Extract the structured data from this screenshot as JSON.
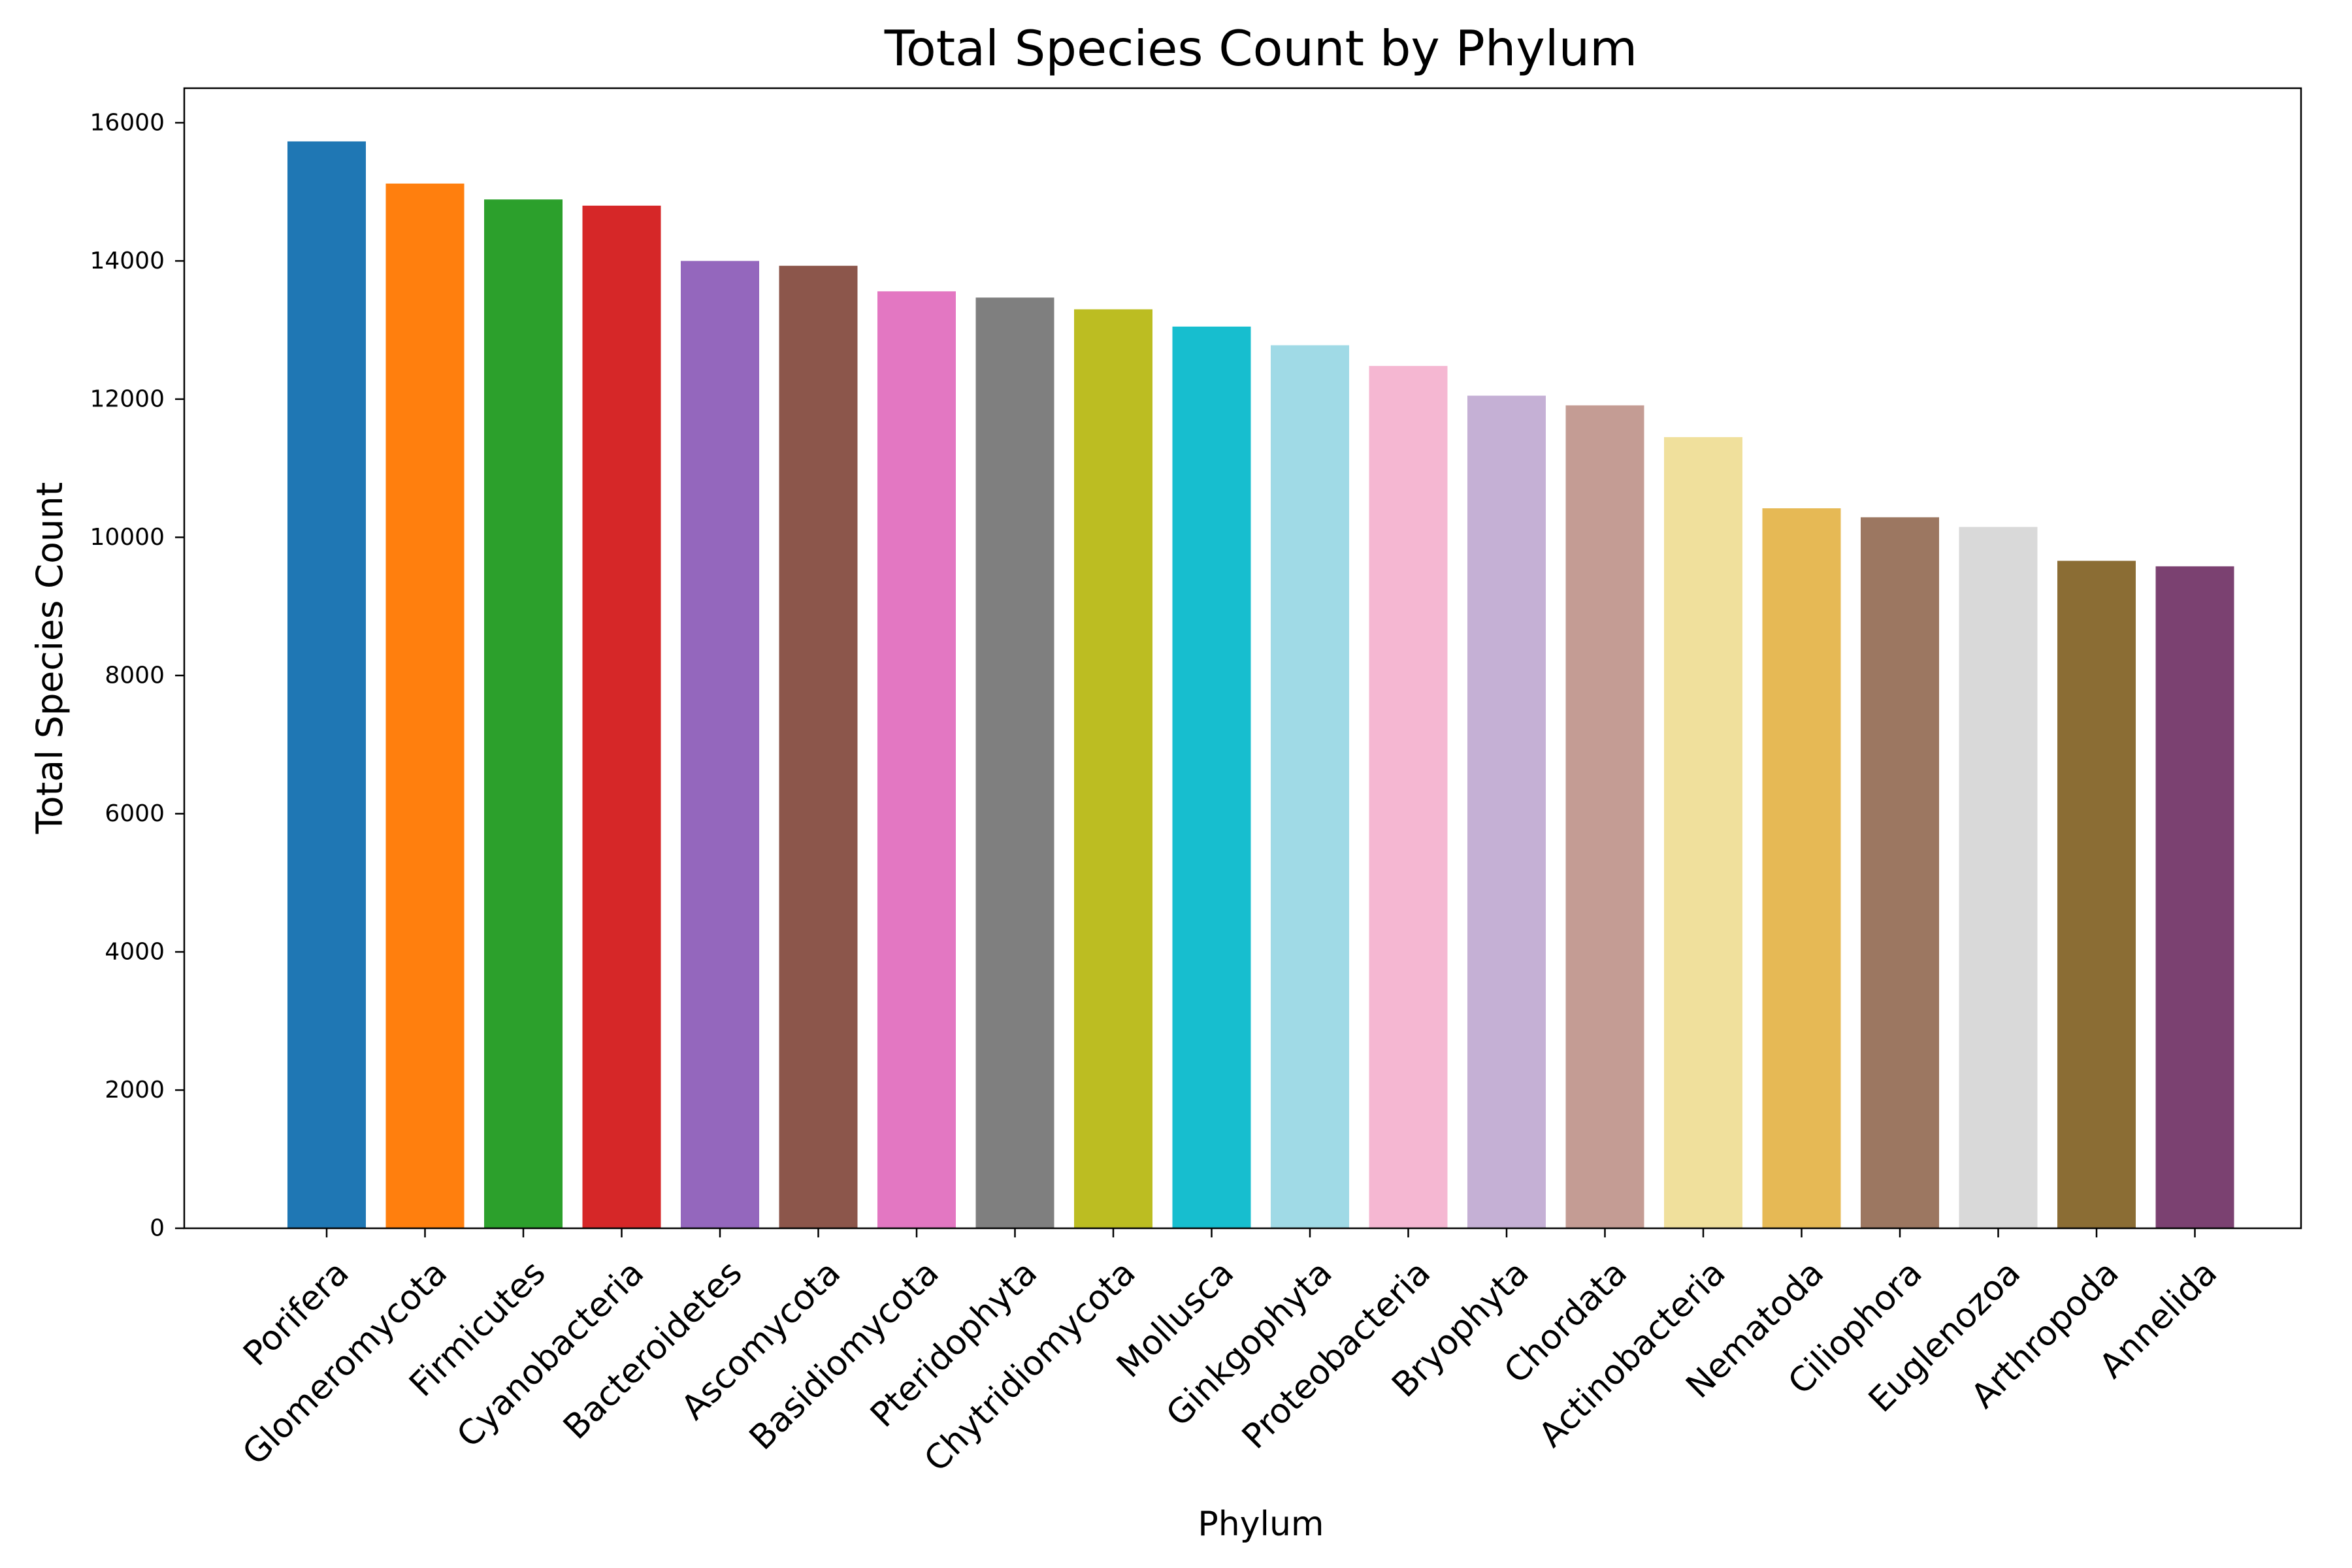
{
  "chart_data": {
    "type": "bar",
    "title": "Total Species Count by Phylum",
    "xlabel": "Phylum",
    "ylabel": "Total Species Count",
    "ylim": [
      0,
      16500
    ],
    "yticks": [
      0,
      2000,
      4000,
      6000,
      8000,
      10000,
      12000,
      14000,
      16000
    ],
    "grid": false,
    "categories": [
      "Porifera",
      "Glomeromycota",
      "Firmicutes",
      "Cyanobacteria",
      "Bacteroidetes",
      "Ascomycota",
      "Basidiomycota",
      "Pteridophyta",
      "Chytridiomycota",
      "Mollusca",
      "Ginkgophyta",
      "Proteobacteria",
      "Bryophyta",
      "Chordata",
      "Actinobacteria",
      "Nematoda",
      "Ciliophora",
      "Euglenozoa",
      "Arthropoda",
      "Annelida"
    ],
    "values": [
      15730,
      15120,
      14890,
      14800,
      14000,
      13930,
      13560,
      13470,
      13300,
      13050,
      12780,
      12480,
      12050,
      11910,
      11450,
      10420,
      10290,
      10150,
      9660,
      9580
    ],
    "colors": [
      "#1f77b4",
      "#ff7f0e",
      "#2ca02c",
      "#d62728",
      "#9467bd",
      "#8c564b",
      "#e377c2",
      "#7f7f7f",
      "#bcbd22",
      "#17becf",
      "#a0dae6",
      "#f5b7d2",
      "#c5b0d5",
      "#c49c94",
      "#f0e09c",
      "#e6b955",
      "#9c7761",
      "#d9d9d9",
      "#8b6d34",
      "#7b4171"
    ]
  }
}
